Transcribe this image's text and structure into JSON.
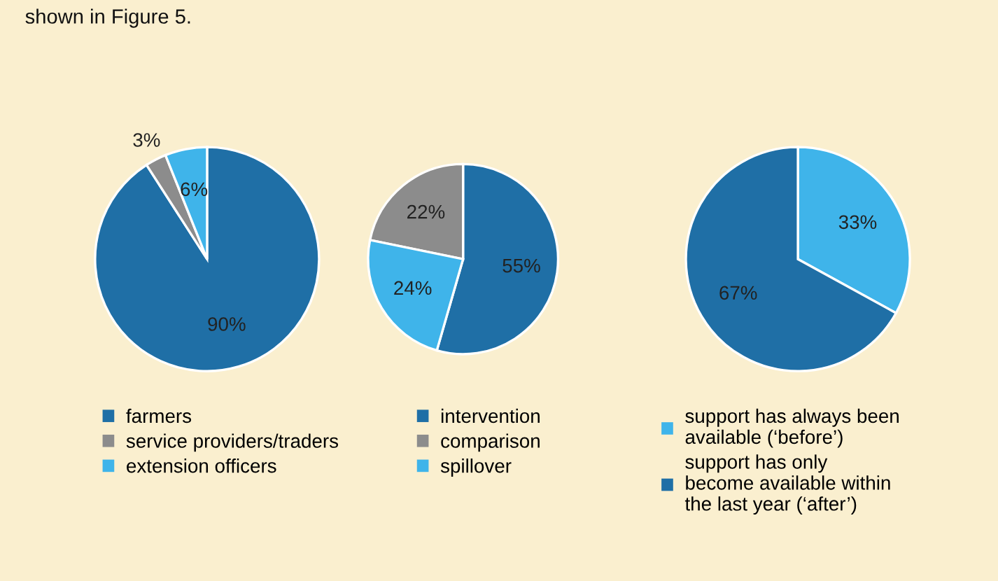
{
  "chart_data": [
    {
      "type": "pie",
      "categories": [
        "farmers",
        "service providers/traders",
        "extension officers"
      ],
      "values": [
        90,
        3,
        6
      ],
      "colors": [
        "#1f6fa6",
        "#8c8c8c",
        "#3fb4ea"
      ],
      "value_labels": [
        "90%",
        "3%",
        "6%"
      ],
      "legend": "bottom",
      "annotations": [
        "shown in Figure 5."
      ]
    },
    {
      "type": "pie",
      "categories": [
        "intervention",
        "comparison",
        "spillover"
      ],
      "values": [
        55,
        22,
        24
      ],
      "colors": [
        "#1f6fa6",
        "#8c8c8c",
        "#3fb4ea"
      ],
      "value_labels": [
        "55%",
        "22%",
        "24%"
      ],
      "legend": "bottom"
    },
    {
      "type": "pie",
      "categories": [
        "support has always been\navailable (‘before’)",
        "support has only\nbecome available within\nthe last year (‘after’)"
      ],
      "values": [
        33,
        67
      ],
      "colors": [
        "#3fb4ea",
        "#1f6fa6"
      ],
      "value_labels": [
        "33%",
        "67%"
      ],
      "legend": "bottom"
    }
  ]
}
